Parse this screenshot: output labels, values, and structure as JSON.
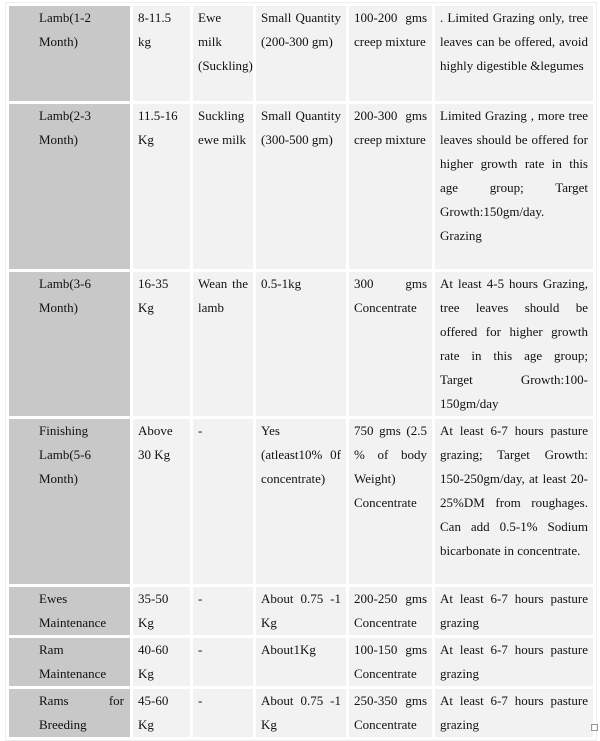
{
  "rows": [
    [
      "Lamb(1-2 Month)",
      "8-11.5 kg",
      "Ewe milk (Suckling)",
      "Small Quantity (200-300 gm)",
      "100-200 gms creep mixture",
      ". Limited Grazing only, tree leaves can be offered, avoid highly digestible &legumes"
    ],
    [
      "Lamb(2-3 Month)",
      "11.5-16 Kg",
      "Suckling ewe milk",
      "Small Quantity (300-500 gm)",
      "200-300 gms creep mixture",
      "Limited Grazing , more tree leaves should be offered for higher growth rate in this age group; Target Growth:150gm/day. Grazing"
    ],
    [
      "Lamb(3-6 Month)",
      "16-35 Kg",
      "Wean the lamb",
      "0.5-1kg",
      "300 gms Concentrate",
      "At least 4-5 hours Grazing, tree leaves should be offered for higher growth rate in this age group; Target Growth:100-150gm/day"
    ],
    [
      "Finishing Lamb(5-6 Month)",
      "Above 30 Kg",
      "-",
      "Yes (atleast10% 0f concentrate)",
      "750 gms (2.5 % of body Weight) Concentrate",
      "At least 6-7 hours pasture grazing; Target Growth: 150-250gm/day, at least 20-25%DM from roughages. Can add 0.5-1% Sodium bicarbonate in concentrate."
    ],
    [
      "Ewes Maintenance",
      "35-50 Kg",
      "-",
      "About 0.75 -1 Kg",
      "200-250 gms Concentrate",
      "At least 6-7 hours pasture grazing"
    ],
    [
      "Ram Maintenance",
      "40-60 Kg",
      "-",
      "About1Kg",
      "100-150 gms Concentrate",
      "At least 6-7 hours pasture grazing"
    ],
    [
      "Rams for Breeding",
      "45-60 Kg",
      "-",
      "About 0.75 -1 Kg",
      "250-350 gms Concentrate",
      "At least 6-7 hours pasture grazing"
    ]
  ],
  "colors": {
    "first_column": "#c8c8c8",
    "cells": "#f2f2f2"
  }
}
